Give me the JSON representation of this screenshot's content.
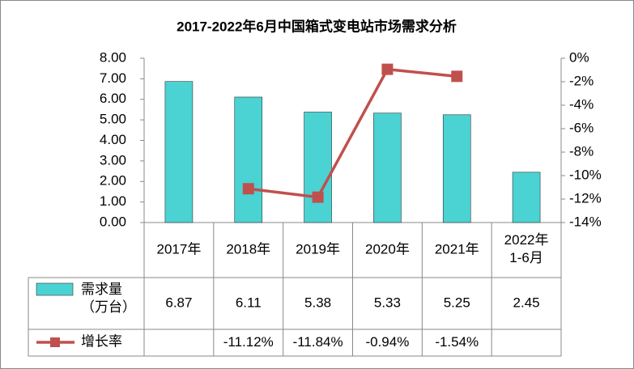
{
  "chart_data": {
    "type": "bar-line",
    "title": "2017-2022年6月中国箱式变电站市场需求分析",
    "categories": [
      "2017年",
      "2018年",
      "2019年",
      "2020年",
      "2021年",
      "2022年\n1-6月"
    ],
    "series": [
      {
        "name": "需求量\n（万台）",
        "type": "bar",
        "color": "#4bd2d2",
        "values": [
          6.87,
          6.11,
          5.38,
          5.33,
          5.25,
          2.45
        ]
      },
      {
        "name": "增长率",
        "type": "line",
        "axis": "y2",
        "color": "#c0504d",
        "values": [
          null,
          -11.12,
          -11.84,
          -0.94,
          -1.54,
          null
        ],
        "value_labels": [
          null,
          "-11.12%",
          "-11.84%",
          "-0.94%",
          "-1.54%",
          null
        ]
      }
    ],
    "ylim": [
      0,
      8
    ],
    "yticks": [
      {
        "value": 0,
        "label": "0.00"
      },
      {
        "value": 1,
        "label": "1.00"
      },
      {
        "value": 2,
        "label": "2.00"
      },
      {
        "value": 3,
        "label": "3.00"
      },
      {
        "value": 4,
        "label": "4.00"
      },
      {
        "value": 5,
        "label": "5.00"
      },
      {
        "value": 6,
        "label": "6.00"
      },
      {
        "value": 7,
        "label": "7.00"
      },
      {
        "value": 8,
        "label": "8.00"
      }
    ],
    "y2lim": [
      -14,
      0
    ],
    "y2ticks": [
      {
        "value": 0,
        "label": "0%"
      },
      {
        "value": -2,
        "label": "-2%"
      },
      {
        "value": -4,
        "label": "-4%"
      },
      {
        "value": -6,
        "label": "-6%"
      },
      {
        "value": -8,
        "label": "-8%"
      },
      {
        "value": -10,
        "label": "-10%"
      },
      {
        "value": -12,
        "label": "-12%"
      },
      {
        "value": -14,
        "label": "-14%"
      }
    ]
  }
}
